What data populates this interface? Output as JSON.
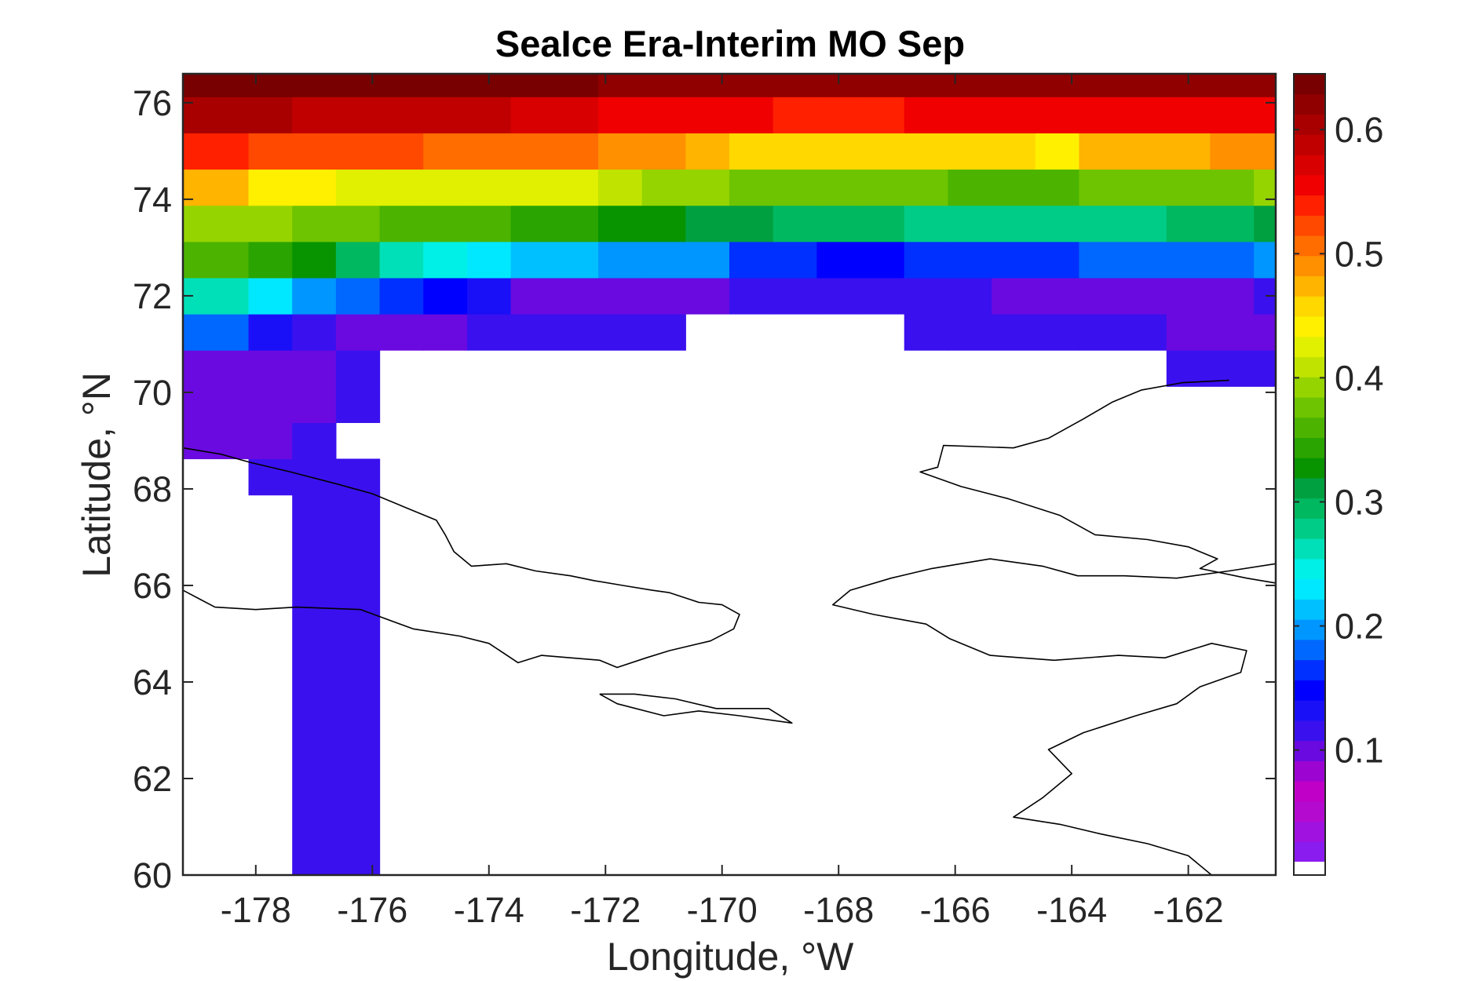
{
  "chart_data": {
    "type": "heatmap",
    "title": "SeaIce Era-Interim MO Sep",
    "xlabel": "Longitude, °W",
    "ylabel": "Latitude, °N",
    "xlim": [
      -179.25,
      -160.5
    ],
    "ylim": [
      60,
      76.6
    ],
    "xticks": [
      -178,
      -176,
      -174,
      -172,
      -170,
      -168,
      -166,
      -164,
      -162
    ],
    "yticks": [
      60,
      62,
      64,
      66,
      68,
      70,
      72,
      74,
      76
    ],
    "colorbar": {
      "range": [
        0.01,
        0.645
      ],
      "ticks": [
        0.1,
        0.2,
        0.3,
        0.4,
        0.5,
        0.6
      ],
      "colormap": [
        "#8b1cf0",
        "#9f12e0",
        "#b40ad0",
        "#c000c6",
        "#9c04d2",
        "#6a0ae0",
        "#3a10ee",
        "#1a10f8",
        "#0000ff",
        "#0030ff",
        "#0068ff",
        "#0096ff",
        "#00c0ff",
        "#00e8ff",
        "#00f0e8",
        "#00e0b8",
        "#00cc88",
        "#00b860",
        "#00a040",
        "#089400",
        "#2aa400",
        "#4cb400",
        "#6ec400",
        "#96d400",
        "#c0e400",
        "#e0f000",
        "#fff000",
        "#ffd800",
        "#ffb400",
        "#ff9000",
        "#ff6c00",
        "#ff4800",
        "#ff2000",
        "#f00000",
        "#d80000",
        "#c00000",
        "#a80000",
        "#900000",
        "#780000"
      ],
      "nan_color": "#ffffff"
    },
    "grid": {
      "lon_edges": [
        -179.25,
        -178.125,
        -177.375,
        -176.625,
        -175.875,
        -175.125,
        -174.375,
        -173.625,
        -172.875,
        -172.125,
        -171.375,
        -170.625,
        -169.875,
        -169.125,
        -168.375,
        -167.625,
        -166.875,
        -166.125,
        -165.375,
        -164.625,
        -163.875,
        -163.125,
        -162.375,
        -161.625,
        -160.875,
        -160.5
      ],
      "lat_edges": [
        60.0,
        67.875,
        68.625,
        69.375,
        70.125,
        70.875,
        71.625,
        72.375,
        73.125,
        73.875,
        74.625,
        75.375,
        76.125,
        76.6
      ],
      "values": [
        [
          null,
          null,
          0.11,
          0.11,
          null,
          null,
          null,
          null,
          null,
          null,
          null,
          null,
          null,
          null,
          null,
          null,
          null,
          null,
          null,
          null,
          null,
          null,
          null,
          null,
          null
        ],
        [
          null,
          0.11,
          0.11,
          0.11,
          null,
          null,
          null,
          null,
          null,
          null,
          null,
          null,
          null,
          null,
          null,
          null,
          null,
          null,
          null,
          null,
          null,
          null,
          null,
          null,
          null
        ],
        [
          0.1,
          0.1,
          0.11,
          null,
          null,
          null,
          null,
          null,
          null,
          null,
          null,
          null,
          null,
          null,
          null,
          null,
          null,
          null,
          null,
          null,
          null,
          null,
          null,
          null,
          null
        ],
        [
          0.1,
          0.1,
          0.1,
          0.11,
          null,
          null,
          null,
          null,
          null,
          null,
          null,
          null,
          null,
          null,
          null,
          null,
          null,
          null,
          null,
          null,
          null,
          null,
          null,
          null,
          null
        ],
        [
          0.1,
          0.1,
          0.1,
          0.11,
          null,
          null,
          null,
          null,
          null,
          null,
          null,
          null,
          null,
          null,
          null,
          null,
          null,
          null,
          null,
          null,
          null,
          null,
          0.12,
          0.12,
          0.12
        ],
        [
          0.18,
          0.13,
          0.11,
          0.1,
          0.1,
          0.1,
          0.11,
          0.12,
          0.12,
          0.12,
          0.12,
          null,
          null,
          null,
          null,
          null,
          0.12,
          0.12,
          0.11,
          0.11,
          0.11,
          0.11,
          0.1,
          0.1,
          0.1
        ],
        [
          0.27,
          0.23,
          0.2,
          0.18,
          0.16,
          0.15,
          0.13,
          0.1,
          0.1,
          0.1,
          0.1,
          0.1,
          0.11,
          0.11,
          0.11,
          0.11,
          0.11,
          0.11,
          0.1,
          0.1,
          0.1,
          0.1,
          0.1,
          0.1,
          0.11
        ],
        [
          0.36,
          0.34,
          0.32,
          0.3,
          0.27,
          0.25,
          0.23,
          0.21,
          0.21,
          0.2,
          0.19,
          0.19,
          0.16,
          0.16,
          0.15,
          0.15,
          0.16,
          0.16,
          0.17,
          0.17,
          0.18,
          0.18,
          0.18,
          0.18,
          0.19
        ],
        [
          0.4,
          0.39,
          0.38,
          0.37,
          0.36,
          0.36,
          0.36,
          0.35,
          0.34,
          0.33,
          0.32,
          0.31,
          0.31,
          0.3,
          0.29,
          0.29,
          0.28,
          0.28,
          0.28,
          0.28,
          0.28,
          0.28,
          0.3,
          0.3,
          0.31
        ],
        [
          0.48,
          0.44,
          0.44,
          0.43,
          0.43,
          0.43,
          0.43,
          0.42,
          0.42,
          0.41,
          0.4,
          0.39,
          0.38,
          0.37,
          0.37,
          0.37,
          0.37,
          0.36,
          0.36,
          0.36,
          0.37,
          0.37,
          0.37,
          0.38,
          0.39
        ],
        [
          0.54,
          0.53,
          0.53,
          0.52,
          0.52,
          0.51,
          0.51,
          0.5,
          0.5,
          0.49,
          0.49,
          0.48,
          0.46,
          0.46,
          0.45,
          0.45,
          0.45,
          0.45,
          0.45,
          0.44,
          0.47,
          0.47,
          0.48,
          0.49,
          0.49
        ],
        [
          0.6,
          0.6,
          0.59,
          0.59,
          0.58,
          0.58,
          0.58,
          0.57,
          0.57,
          0.56,
          0.56,
          0.55,
          0.55,
          0.54,
          0.54,
          0.54,
          0.55,
          0.55,
          0.55,
          0.55,
          0.56,
          0.56,
          0.56,
          0.56,
          0.56
        ],
        [
          0.64,
          0.64,
          0.64,
          0.64,
          0.64,
          0.64,
          0.64,
          0.63,
          0.63,
          0.62,
          0.62,
          0.62,
          0.62,
          0.62,
          0.62,
          0.62,
          0.62,
          0.62,
          0.62,
          0.62,
          0.62,
          0.62,
          0.62,
          0.62,
          0.62
        ]
      ]
    },
    "coastlines": [
      [
        [
          -179.25,
          68.85
        ],
        [
          -178.6,
          68.72
        ],
        [
          -178.1,
          68.55
        ],
        [
          -177.4,
          68.35
        ],
        [
          -176.6,
          68.1
        ],
        [
          -176.0,
          67.9
        ],
        [
          -175.4,
          67.6
        ],
        [
          -174.9,
          67.35
        ],
        [
          -174.75,
          67.05
        ],
        [
          -174.6,
          66.7
        ],
        [
          -174.3,
          66.4
        ],
        [
          -173.7,
          66.45
        ],
        [
          -173.2,
          66.3
        ],
        [
          -172.6,
          66.2
        ],
        [
          -172.2,
          66.1
        ],
        [
          -171.7,
          66.0
        ],
        [
          -171.2,
          65.9
        ],
        [
          -170.9,
          65.85
        ],
        [
          -170.4,
          65.65
        ],
        [
          -170.0,
          65.6
        ],
        [
          -169.7,
          65.4
        ],
        [
          -169.8,
          65.1
        ],
        [
          -170.2,
          64.85
        ],
        [
          -170.9,
          64.65
        ],
        [
          -171.3,
          64.5
        ],
        [
          -171.8,
          64.3
        ],
        [
          -172.1,
          64.45
        ],
        [
          -172.6,
          64.5
        ],
        [
          -173.1,
          64.55
        ],
        [
          -173.5,
          64.4
        ],
        [
          -174.0,
          64.8
        ],
        [
          -174.5,
          64.95
        ],
        [
          -175.3,
          65.1
        ],
        [
          -176.2,
          65.5
        ],
        [
          -177.3,
          65.55
        ],
        [
          -178.0,
          65.5
        ],
        [
          -178.7,
          65.55
        ],
        [
          -179.25,
          65.9
        ]
      ],
      [
        [
          -172.1,
          63.75
        ],
        [
          -171.8,
          63.55
        ],
        [
          -171.0,
          63.3
        ],
        [
          -170.4,
          63.4
        ],
        [
          -169.7,
          63.3
        ],
        [
          -168.8,
          63.15
        ],
        [
          -169.2,
          63.45
        ],
        [
          -170.1,
          63.45
        ],
        [
          -170.8,
          63.65
        ],
        [
          -171.5,
          63.75
        ],
        [
          -172.1,
          63.75
        ]
      ],
      [
        [
          -161.3,
          70.25
        ],
        [
          -162.1,
          70.2
        ],
        [
          -162.8,
          70.05
        ],
        [
          -163.3,
          69.8
        ],
        [
          -163.8,
          69.45
        ],
        [
          -164.4,
          69.05
        ],
        [
          -165.0,
          68.85
        ],
        [
          -166.2,
          68.9
        ],
        [
          -166.3,
          68.45
        ],
        [
          -166.6,
          68.35
        ],
        [
          -165.9,
          68.05
        ],
        [
          -165.1,
          67.8
        ],
        [
          -164.2,
          67.45
        ],
        [
          -163.6,
          67.05
        ],
        [
          -162.7,
          66.95
        ],
        [
          -162.0,
          66.8
        ],
        [
          -161.5,
          66.55
        ],
        [
          -161.8,
          66.35
        ],
        [
          -161.0,
          66.15
        ],
        [
          -160.5,
          66.05
        ]
      ],
      [
        [
          -160.5,
          66.45
        ],
        [
          -161.3,
          66.3
        ],
        [
          -162.2,
          66.15
        ],
        [
          -163.1,
          66.2
        ],
        [
          -163.9,
          66.2
        ],
        [
          -164.5,
          66.4
        ],
        [
          -165.4,
          66.55
        ],
        [
          -166.4,
          66.35
        ],
        [
          -167.1,
          66.15
        ],
        [
          -167.8,
          65.9
        ],
        [
          -168.1,
          65.6
        ],
        [
          -167.4,
          65.4
        ],
        [
          -166.5,
          65.2
        ],
        [
          -166.1,
          64.9
        ],
        [
          -165.4,
          64.55
        ],
        [
          -164.3,
          64.45
        ],
        [
          -163.2,
          64.55
        ],
        [
          -162.4,
          64.5
        ],
        [
          -161.6,
          64.8
        ],
        [
          -161.0,
          64.65
        ],
        [
          -161.1,
          64.2
        ],
        [
          -161.8,
          63.9
        ],
        [
          -162.2,
          63.55
        ],
        [
          -162.9,
          63.3
        ],
        [
          -163.8,
          62.95
        ],
        [
          -164.4,
          62.6
        ],
        [
          -164.0,
          62.1
        ],
        [
          -164.5,
          61.6
        ],
        [
          -165.0,
          61.2
        ],
        [
          -164.2,
          61.05
        ],
        [
          -163.5,
          60.85
        ],
        [
          -162.7,
          60.65
        ],
        [
          -162.0,
          60.4
        ],
        [
          -161.6,
          60.0
        ]
      ]
    ]
  }
}
